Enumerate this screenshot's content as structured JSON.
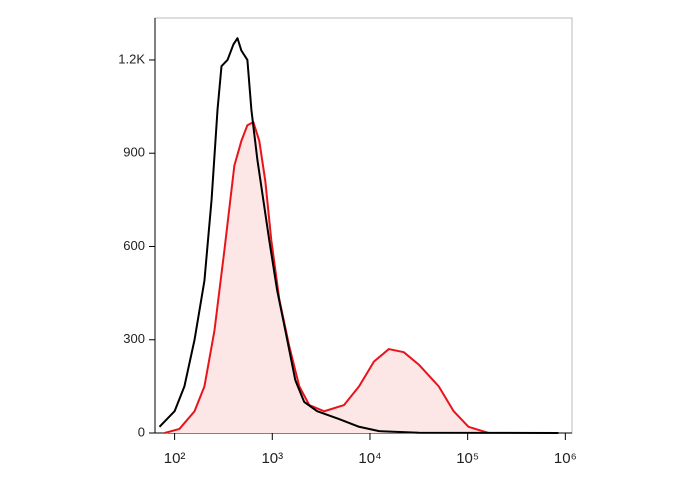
{
  "chart_data": {
    "type": "histogram-overlay",
    "xscale": "log",
    "xlim": [
      63,
      1170000
    ],
    "ylim": [
      0,
      1335
    ],
    "xticks": [
      {
        "value": 100,
        "label": "10²"
      },
      {
        "value": 1000,
        "label": "10³"
      },
      {
        "value": 10000,
        "label": "10⁴"
      },
      {
        "value": 100000,
        "label": "10⁵"
      },
      {
        "value": 1000000,
        "label": "10⁶"
      }
    ],
    "yticks": [
      0,
      300,
      600,
      900,
      {
        "value": 1200,
        "label": "1.2K"
      }
    ],
    "series": [
      {
        "color": "#000000",
        "x": [
          70,
          100,
          126,
          160,
          202,
          239,
          275,
          302,
          348,
          400,
          440,
          483,
          556,
          611,
          703,
          809,
          931,
          1120,
          1360,
          1720,
          2120,
          2880,
          4830,
          7730,
          12400,
          31600,
          849000
        ],
        "values": [
          20,
          70,
          150,
          300,
          490,
          750,
          1040,
          1180,
          1200,
          1250,
          1270,
          1230,
          1200,
          1040,
          880,
          750,
          620,
          460,
          330,
          170,
          100,
          70,
          45,
          20,
          6,
          1,
          0
        ]
      },
      {
        "color": "#e8141b",
        "fill": "#fde6e6",
        "x": [
          79,
          112,
          160,
          202,
          256,
          324,
          409,
          483,
          556,
          640,
          736,
          849,
          977,
          1180,
          1490,
          1890,
          2390,
          3400,
          5430,
          7730,
          11000,
          15600,
          22200,
          31600,
          50600,
          71900,
          102000,
          164000
        ],
        "values": [
          0,
          13,
          70,
          150,
          330,
          590,
          860,
          940,
          990,
          1000,
          940,
          810,
          620,
          430,
          280,
          150,
          90,
          70,
          90,
          150,
          230,
          270,
          260,
          220,
          150,
          70,
          20,
          0
        ]
      }
    ]
  }
}
